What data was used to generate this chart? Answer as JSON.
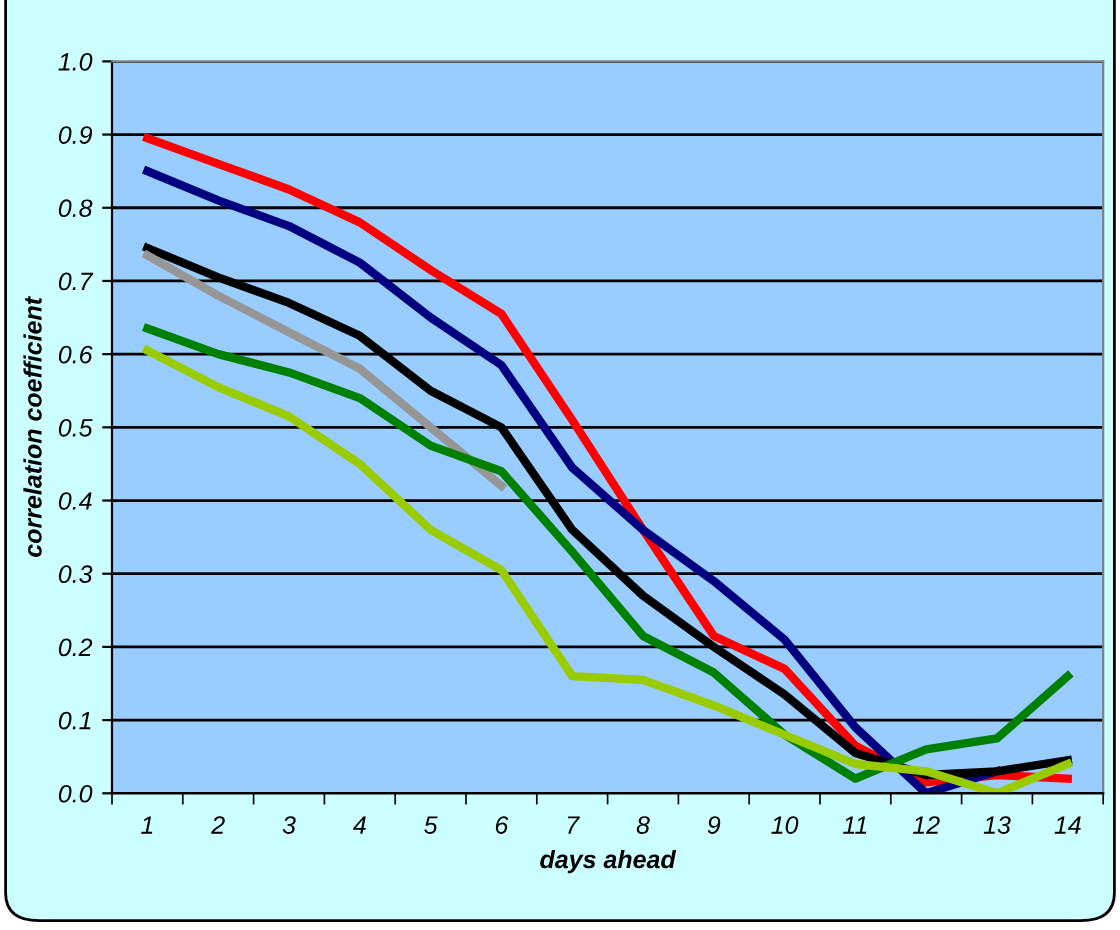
{
  "chart_data": {
    "type": "line",
    "xlabel": "days ahead",
    "ylabel": "correlation coefficient",
    "categories": [
      "1",
      "2",
      "3",
      "4",
      "5",
      "6",
      "7",
      "8",
      "9",
      "10",
      "11",
      "12",
      "13",
      "14"
    ],
    "series": [
      {
        "color": "#ff0000",
        "values": [
          0.895,
          0.86,
          0.825,
          0.78,
          0.715,
          0.655,
          0.51,
          0.36,
          0.215,
          0.17,
          0.065,
          0.015,
          0.025,
          0.02
        ]
      },
      {
        "color": "#000080",
        "values": [
          0.85,
          0.81,
          0.775,
          0.725,
          0.65,
          0.585,
          0.445,
          0.36,
          0.29,
          0.21,
          0.09,
          0.0,
          0.03,
          null
        ]
      },
      {
        "color": "#000000",
        "values": [
          0.745,
          0.705,
          0.67,
          0.625,
          0.55,
          0.5,
          0.36,
          0.27,
          0.2,
          0.135,
          0.055,
          0.025,
          0.03,
          0.045
        ]
      },
      {
        "color": "#969696",
        "values": [
          0.735,
          0.68,
          0.63,
          0.58,
          0.5,
          0.42,
          null,
          null,
          null,
          null,
          null,
          null,
          null,
          null
        ]
      },
      {
        "color": "#008000",
        "values": [
          0.635,
          0.6,
          0.575,
          0.54,
          0.475,
          0.44,
          0.33,
          0.215,
          0.165,
          0.08,
          0.02,
          0.06,
          0.075,
          0.16
        ]
      },
      {
        "color": "#99cc00",
        "values": [
          0.605,
          0.555,
          0.515,
          0.45,
          0.36,
          0.305,
          0.16,
          0.155,
          0.12,
          0.08,
          0.04,
          0.03,
          0.0,
          0.04
        ]
      }
    ],
    "ylim": [
      0,
      1
    ],
    "yticks": [
      {
        "value": 0,
        "label": "0.0"
      },
      0.1,
      0.2,
      0.3,
      0.4,
      0.5,
      0.6,
      0.7,
      0.8,
      0.9,
      {
        "value": 1,
        "label": "1.0"
      }
    ],
    "grid": "y",
    "legend": false,
    "marker": "none",
    "line_style": "solid"
  }
}
